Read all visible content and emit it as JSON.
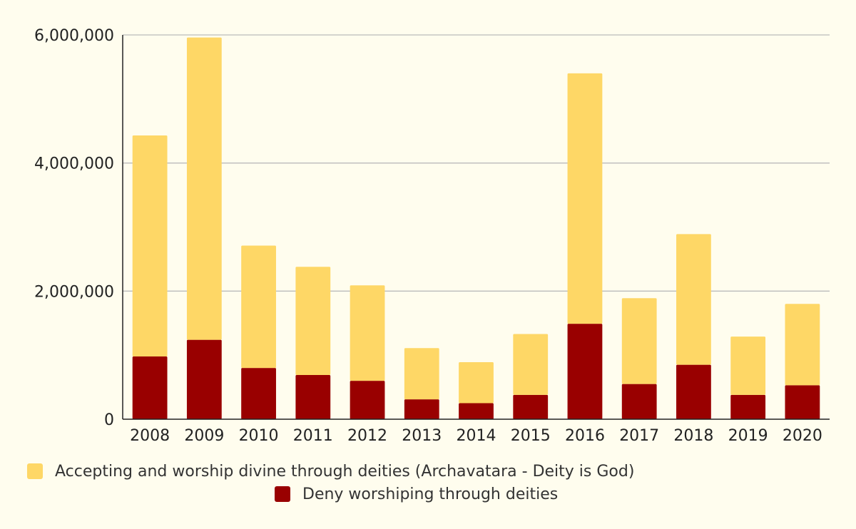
{
  "colors": {
    "background": "#fffdee",
    "accepting": "#fed766",
    "deny": "#990000",
    "grid": "#bbbbbb",
    "axis": "#222222"
  },
  "chart_data": {
    "type": "bar",
    "stacked": true,
    "categories": [
      "2008",
      "2009",
      "2010",
      "2011",
      "2012",
      "2013",
      "2014",
      "2015",
      "2016",
      "2017",
      "2018",
      "2019",
      "2020"
    ],
    "series": [
      {
        "name": "Deny worshiping through deities",
        "color": "#990000",
        "values": [
          980000,
          1240000,
          800000,
          690000,
          600000,
          310000,
          250000,
          380000,
          1490000,
          550000,
          850000,
          380000,
          530000
        ]
      },
      {
        "name": "Accepting and worship divine through deities (Archavatara - Deity is God)",
        "color": "#fed766",
        "values": [
          3450000,
          4720000,
          1910000,
          1690000,
          1490000,
          800000,
          640000,
          950000,
          3910000,
          1340000,
          2040000,
          910000,
          1270000
        ]
      }
    ],
    "ylim": [
      0,
      6000000
    ],
    "yticks": [
      0,
      2000000,
      4000000,
      6000000
    ],
    "ytick_labels": [
      "0",
      "2,000,000",
      "4,000,000",
      "6,000,000"
    ],
    "grid": true,
    "legend_position": "bottom",
    "title": "",
    "xlabel": "",
    "ylabel": ""
  },
  "legend": {
    "accepting_label": "Accepting and worship divine through deities (Archavatara - Deity is God)",
    "deny_label": "Deny worshiping through deities"
  }
}
